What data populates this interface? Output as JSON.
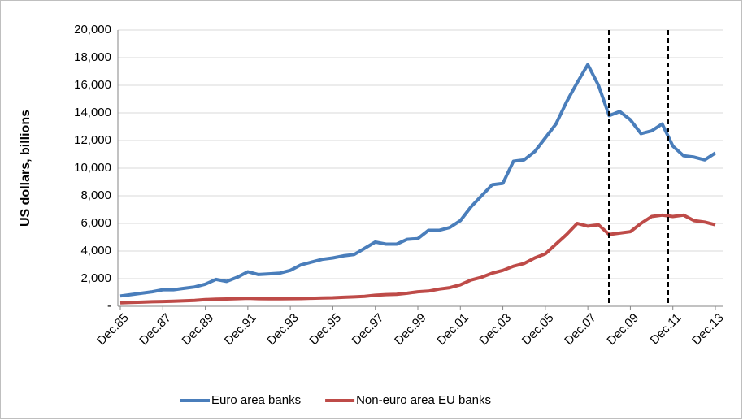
{
  "chart_data": {
    "type": "line",
    "y_label": "US dollars, billions",
    "categories": [
      "Dec.85",
      null,
      null,
      null,
      "Dec.87",
      null,
      null,
      null,
      "Dec.89",
      null,
      null,
      null,
      "Dec.91",
      null,
      null,
      null,
      "Dec.93",
      null,
      null,
      null,
      "Dec.95",
      null,
      null,
      null,
      "Dec.97",
      null,
      null,
      null,
      "Dec.99",
      null,
      null,
      null,
      "Dec.01",
      null,
      null,
      null,
      "Dec.03",
      null,
      null,
      null,
      "Dec.05",
      null,
      null,
      null,
      "Dec.07",
      null,
      null,
      null,
      "Dec.09",
      null,
      null,
      null,
      "Dec.11",
      null,
      null,
      null,
      "Dec.13"
    ],
    "series": [
      {
        "name": "Euro area banks",
        "color": "#4a7ebb",
        "values": [
          750,
          850,
          950,
          1050,
          1200,
          1200,
          1300,
          1400,
          1600,
          1950,
          1800,
          2100,
          2500,
          2300,
          2350,
          2400,
          2600,
          3000,
          3200,
          3400,
          3500,
          3650,
          3750,
          4200,
          4650,
          4500,
          4500,
          4850,
          4900,
          5500,
          5500,
          5700,
          6200,
          7200,
          8000,
          8800,
          8900,
          10500,
          10600,
          11200,
          12200,
          13200,
          14800,
          16200,
          17500,
          16000,
          13800,
          14100,
          13500,
          12500,
          12700,
          13200,
          11600,
          10900,
          10800,
          10600,
          11100
        ]
      },
      {
        "name": "Non-euro area EU banks",
        "color": "#be4b48",
        "values": [
          250,
          280,
          300,
          330,
          350,
          370,
          400,
          430,
          480,
          520,
          530,
          550,
          580,
          550,
          540,
          540,
          550,
          560,
          580,
          600,
          620,
          650,
          680,
          720,
          800,
          850,
          870,
          950,
          1050,
          1100,
          1250,
          1350,
          1550,
          1900,
          2100,
          2400,
          2600,
          2900,
          3100,
          3500,
          3800,
          4500,
          5200,
          6000,
          5800,
          5900,
          5200,
          5300,
          5400,
          6000,
          6500,
          6600,
          6500,
          6600,
          6200,
          6100,
          5900
        ]
      }
    ],
    "ylim": [
      0,
      20000
    ],
    "yticks": [
      {
        "value": 0,
        "label": "-"
      },
      {
        "value": 2000,
        "label": "2,000"
      },
      {
        "value": 4000,
        "label": "4,000"
      },
      {
        "value": 6000,
        "label": "6,000"
      },
      {
        "value": 8000,
        "label": "8,000"
      },
      {
        "value": 10000,
        "label": "10,000"
      },
      {
        "value": 12000,
        "label": "12,000"
      },
      {
        "value": 14000,
        "label": "14,000"
      },
      {
        "value": 16000,
        "label": "16,000"
      },
      {
        "value": 18000,
        "label": "18,000"
      },
      {
        "value": 20000,
        "label": "20,000"
      }
    ],
    "grid": true,
    "legend": "bottom"
  }
}
